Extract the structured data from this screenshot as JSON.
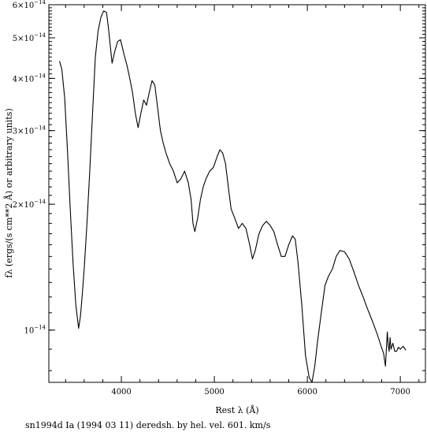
{
  "chart_data": {
    "type": "line",
    "title": "",
    "xlabel": "Rest λ (Å)",
    "ylabel": "fλ (ergs/(s cm**2 Å) or arbitrary units)",
    "caption": "sn1994d Ia (1994 03 11) deredsh. by hel. vel.   601. km/s",
    "y_scale": "log",
    "xlim": [
      3220,
      7270
    ],
    "ylim": [
      7.5e-15,
      6e-14
    ],
    "x_ticks": [
      {
        "value": 4000,
        "label": "4000"
      },
      {
        "value": 5000,
        "label": "5000"
      },
      {
        "value": 6000,
        "label": "6000"
      },
      {
        "value": 7000,
        "label": "7000"
      }
    ],
    "y_ticks": [
      {
        "value": 1e-14,
        "mantissa": "10",
        "exponent": "−14"
      },
      {
        "value": 2e-14,
        "mantissa": "2×10",
        "exponent": "−14"
      },
      {
        "value": 3e-14,
        "mantissa": "3×10",
        "exponent": "−14"
      },
      {
        "value": 4e-14,
        "mantissa": "4×10",
        "exponent": "−14"
      },
      {
        "value": 5e-14,
        "mantissa": "5×10",
        "exponent": "−14"
      },
      {
        "value": 6e-14,
        "mantissa": "6×10",
        "exponent": "−14"
      }
    ],
    "grid": false,
    "series": [
      {
        "x": [
          3335,
          3360,
          3390,
          3420,
          3450,
          3480,
          3510,
          3540,
          3560,
          3580,
          3600,
          3630,
          3660,
          3690,
          3720,
          3750,
          3780,
          3810,
          3840,
          3860,
          3880,
          3900,
          3930,
          3960,
          3990,
          4010,
          4030,
          4060,
          4090,
          4120,
          4150,
          4180,
          4210,
          4240,
          4270,
          4300,
          4330,
          4360,
          4390,
          4420,
          4450,
          4480,
          4520,
          4560,
          4600,
          4640,
          4680,
          4720,
          4750,
          4770,
          4790,
          4820,
          4850,
          4880,
          4910,
          4950,
          4990,
          5030,
          5060,
          5090,
          5120,
          5150,
          5180,
          5220,
          5260,
          5300,
          5340,
          5380,
          5410,
          5440,
          5480,
          5520,
          5560,
          5600,
          5640,
          5680,
          5720,
          5760,
          5800,
          5840,
          5870,
          5900,
          5940,
          5980,
          6020,
          6050,
          6080,
          6110,
          6150,
          6190,
          6230,
          6270,
          6310,
          6350,
          6400,
          6450,
          6500,
          6550,
          6600,
          6650,
          6700,
          6750,
          6790,
          6820,
          6840,
          6860,
          6870,
          6880,
          6890,
          6900,
          6920,
          6940,
          6960,
          6980,
          7000,
          7030,
          7060
        ],
        "y": [
          4.4e-14,
          4.2e-14,
          3.6e-14,
          2.7e-14,
          1.95e-14,
          1.45e-14,
          1.15e-14,
          1.01e-14,
          1.08e-14,
          1.22e-14,
          1.4e-14,
          1.8e-14,
          2.4e-14,
          3.3e-14,
          4.5e-14,
          5.2e-14,
          5.6e-14,
          5.8e-14,
          5.75e-14,
          5.3e-14,
          4.8e-14,
          4.35e-14,
          4.65e-14,
          4.9e-14,
          4.95e-14,
          4.75e-14,
          4.55e-14,
          4.3e-14,
          4e-14,
          3.7e-14,
          3.3e-14,
          3.05e-14,
          3.3e-14,
          3.55e-14,
          3.45e-14,
          3.7e-14,
          3.95e-14,
          3.85e-14,
          3.4e-14,
          3e-14,
          2.8e-14,
          2.65e-14,
          2.5e-14,
          2.4e-14,
          2.25e-14,
          2.3e-14,
          2.4e-14,
          2.25e-14,
          2.05e-14,
          1.8e-14,
          1.72e-14,
          1.85e-14,
          2.05e-14,
          2.2e-14,
          2.3e-14,
          2.4e-14,
          2.45e-14,
          2.6e-14,
          2.7e-14,
          2.65e-14,
          2.5e-14,
          2.2e-14,
          1.95e-14,
          1.85e-14,
          1.75e-14,
          1.8e-14,
          1.75e-14,
          1.6e-14,
          1.48e-14,
          1.55e-14,
          1.7e-14,
          1.78e-14,
          1.82e-14,
          1.78e-14,
          1.72e-14,
          1.6e-14,
          1.5e-14,
          1.5e-14,
          1.6e-14,
          1.68e-14,
          1.65e-14,
          1.45e-14,
          1.15e-14,
          8.7e-15,
          7.7e-15,
          7.5e-15,
          8.2e-15,
          9.4e-15,
          1.1e-14,
          1.28e-14,
          1.35e-14,
          1.4e-14,
          1.5e-14,
          1.55e-14,
          1.54e-14,
          1.48e-14,
          1.38e-14,
          1.28e-14,
          1.2e-14,
          1.12e-14,
          1.05e-14,
          9.8e-15,
          9.2e-15,
          8.8e-15,
          8.2e-15,
          9.9e-15,
          9.2e-15,
          8.9e-15,
          9.6e-15,
          9e-15,
          9.3e-15,
          8.9e-15,
          8.9e-15,
          9.1e-15,
          9e-15,
          9.15e-15,
          8.95e-15
        ]
      }
    ]
  }
}
